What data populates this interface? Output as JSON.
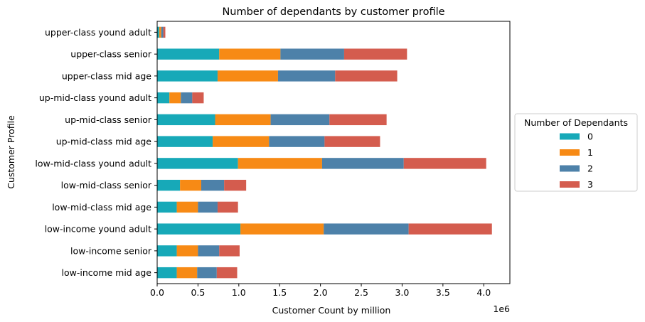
{
  "chart_data": {
    "type": "bar",
    "orientation": "horizontal",
    "stacked": true,
    "title": "Number of dependants by customer profile",
    "xlabel": "Customer Count by million",
    "ylabel": "Customer Profile",
    "x_offset_label": "1e6",
    "xlim": [
      0,
      4.32
    ],
    "xticks": [
      "0.0",
      "0.5",
      "1.0",
      "1.5",
      "2.0",
      "2.5",
      "3.0",
      "3.5",
      "4.0"
    ],
    "grid": false,
    "legend_position": "outside-right",
    "legend_title": "Number of Dependants",
    "categories": [
      "upper-class yound adult",
      "upper-class senior",
      "upper-class mid age",
      "up-mid-class yound adult",
      "up-mid-class senior",
      "up-mid-class mid age",
      "low-mid-class yound adult",
      "low-mid-class senior",
      "low-mid-class mid age",
      "low-income yound adult",
      "low-income senior",
      "low-income mid age"
    ],
    "series": [
      {
        "name": "0",
        "color": "#17a9b8",
        "values": [
          0.025,
          0.76,
          0.74,
          0.15,
          0.71,
          0.68,
          0.99,
          0.28,
          0.24,
          1.02,
          0.24,
          0.24
        ]
      },
      {
        "name": "1",
        "color": "#f78a15",
        "values": [
          0.025,
          0.75,
          0.74,
          0.14,
          0.68,
          0.69,
          1.03,
          0.26,
          0.26,
          1.02,
          0.26,
          0.25
        ]
      },
      {
        "name": "2",
        "color": "#4d81a9",
        "values": [
          0.025,
          0.78,
          0.7,
          0.14,
          0.72,
          0.68,
          1.0,
          0.28,
          0.24,
          1.04,
          0.26,
          0.24
        ]
      },
      {
        "name": "3",
        "color": "#d45c4e",
        "values": [
          0.025,
          0.77,
          0.76,
          0.14,
          0.7,
          0.68,
          1.01,
          0.27,
          0.25,
          1.02,
          0.25,
          0.25
        ]
      }
    ]
  }
}
